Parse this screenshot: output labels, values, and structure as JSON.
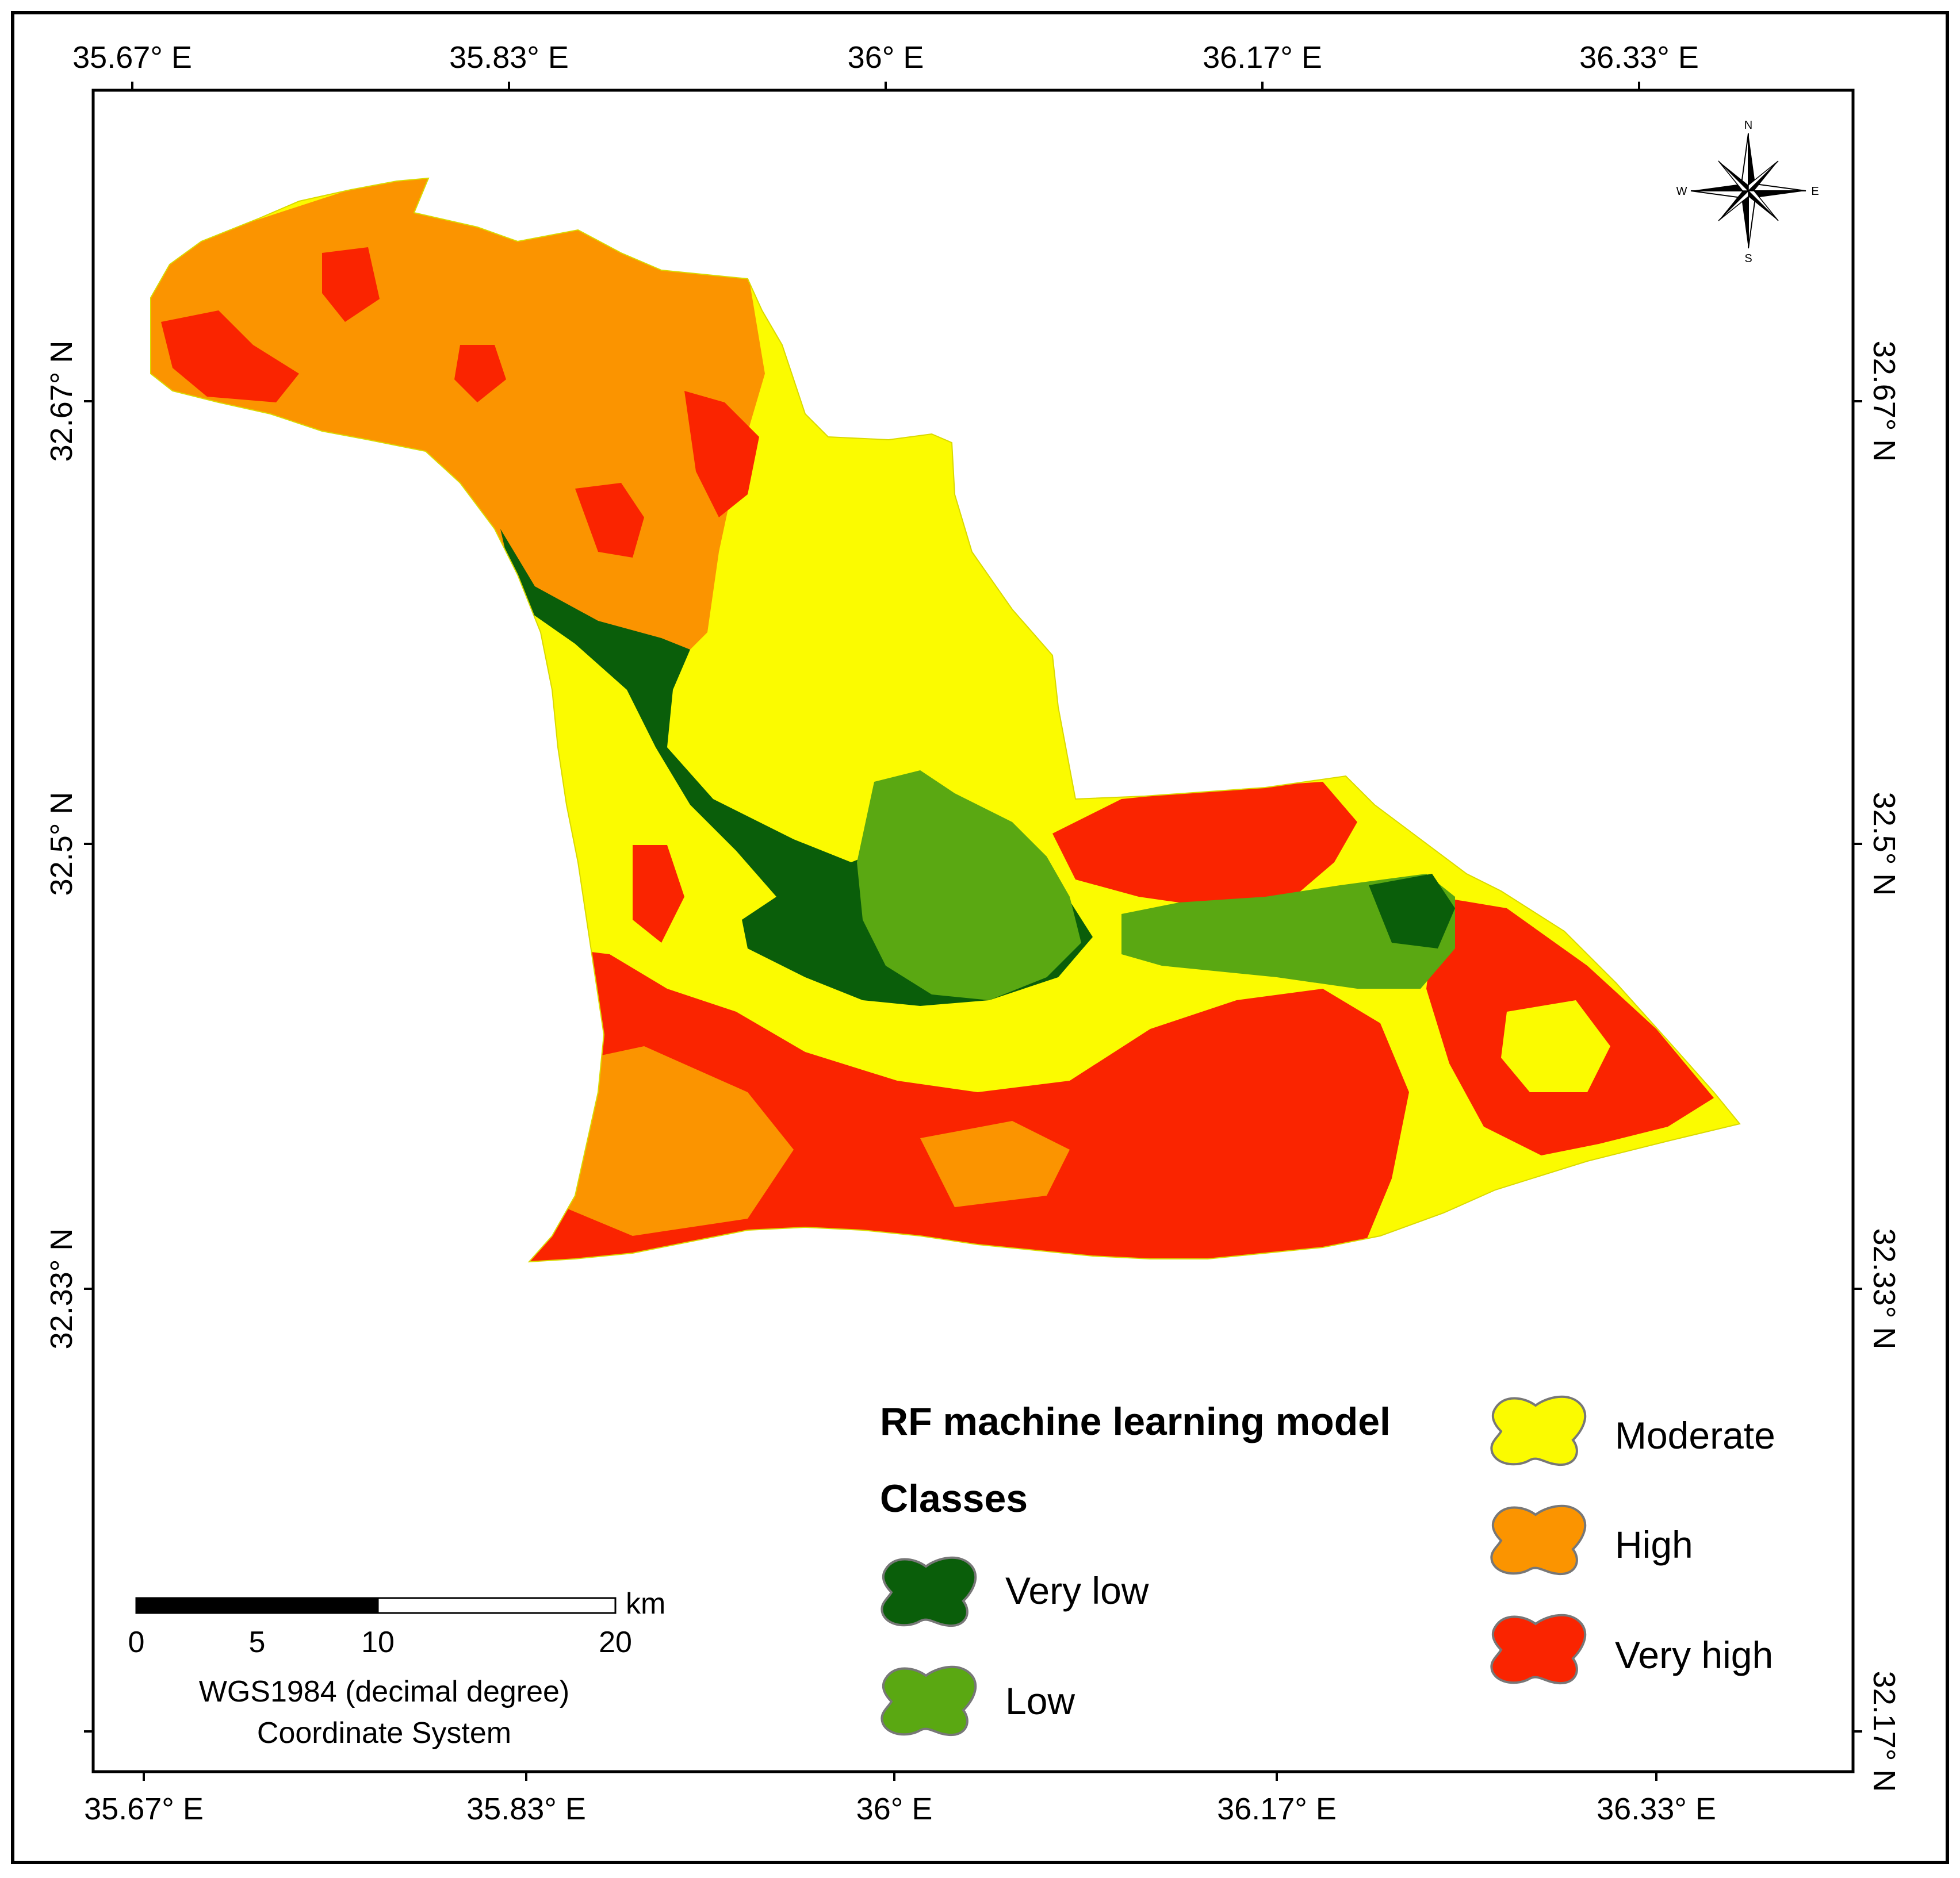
{
  "map": {
    "top_ticks": [
      "35.67° E",
      "35.83° E",
      "36° E",
      "36.17° E",
      "36.33° E"
    ],
    "bottom_ticks": [
      "35.67° E",
      "35.83° E",
      "36° E",
      "36.17° E",
      "36.33° E"
    ],
    "left_ticks": [
      "32.67° N",
      "32.5° N",
      "32.33° N"
    ],
    "right_ticks": [
      "32.67° N",
      "32.5° N",
      "32.33° N",
      "32.17° N"
    ]
  },
  "north_arrow": {
    "n": "N",
    "s": "S",
    "e": "E",
    "w": "W"
  },
  "legend": {
    "title": "RF machine learning model",
    "subtitle": "Classes",
    "classes": [
      {
        "label": "Very low",
        "color": "#0a5e0a"
      },
      {
        "label": "Low",
        "color": "#5aa812"
      },
      {
        "label": "Moderate",
        "color": "#fbfb00"
      },
      {
        "label": "High",
        "color": "#fb9400"
      },
      {
        "label": "Very high",
        "color": "#fa2400"
      }
    ]
  },
  "scale_bar": {
    "unit": "km",
    "labels": [
      "0",
      "5",
      "10",
      "20"
    ],
    "crs_line1": "WGS1984 (decimal degree)",
    "crs_line2": "Coordinate System"
  }
}
